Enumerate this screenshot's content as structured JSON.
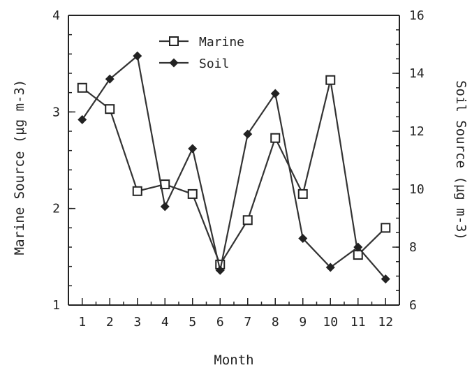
{
  "chart_data": {
    "type": "line",
    "x": [
      1,
      2,
      3,
      4,
      5,
      6,
      7,
      8,
      9,
      10,
      11,
      12
    ],
    "xlabel": "Month",
    "ylabel_left": "Marine Source (µg m-3)",
    "ylabel_right": "Soil Source (µg m-3)",
    "ylim_left": [
      1,
      4
    ],
    "ylim_right": [
      6,
      16
    ],
    "yticks_left": [
      1,
      2,
      3,
      4
    ],
    "yticks_right": [
      6,
      8,
      10,
      12,
      14,
      16
    ],
    "legend_position": "top-center",
    "grid": false,
    "series": [
      {
        "name": "Marine",
        "axis": "left",
        "marker": "open-square",
        "values": [
          3.25,
          3.03,
          2.18,
          2.25,
          2.15,
          1.42,
          1.88,
          2.73,
          2.15,
          3.33,
          1.52,
          1.8
        ]
      },
      {
        "name": "Soil",
        "axis": "right",
        "marker": "filled-diamond",
        "values": [
          12.4,
          13.8,
          14.6,
          9.4,
          11.4,
          7.2,
          11.9,
          13.3,
          8.3,
          7.3,
          8.0,
          6.9
        ]
      }
    ],
    "colors": {
      "ink": "#222222",
      "line": "#333333"
    }
  }
}
